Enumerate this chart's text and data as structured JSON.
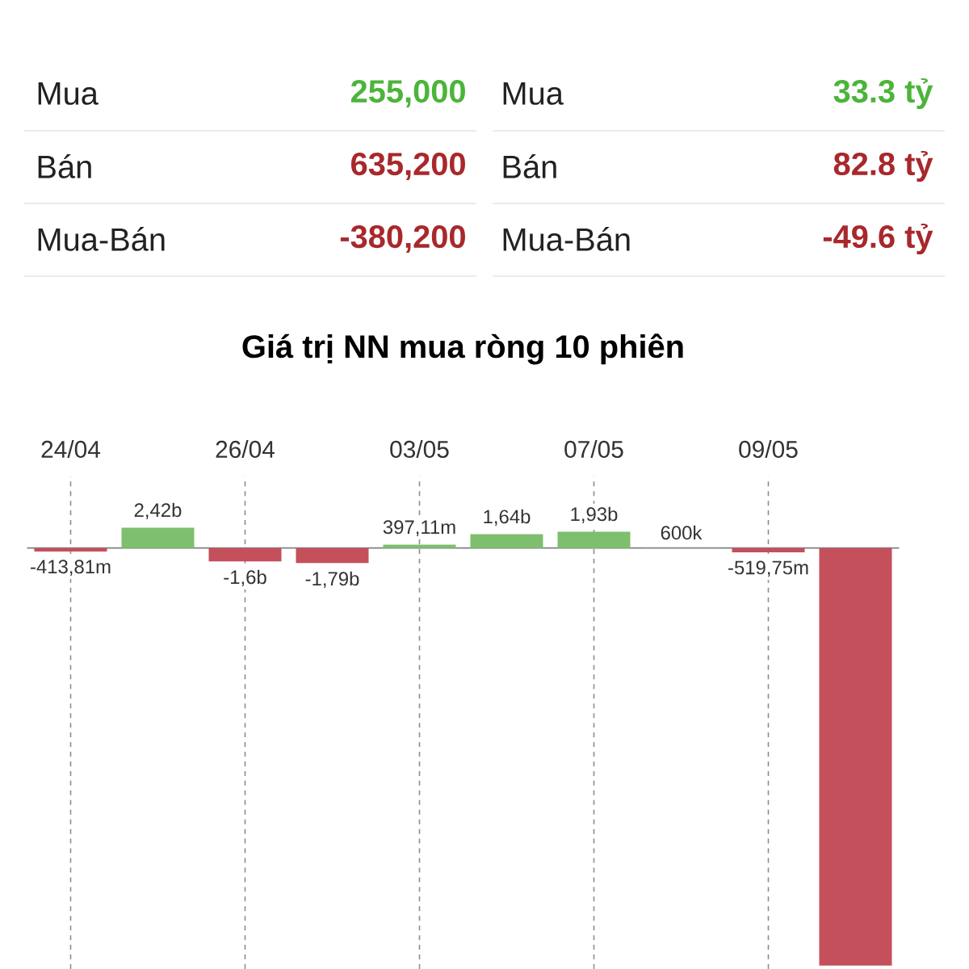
{
  "chart_data": [
    {
      "type": "other",
      "annotations": [
        "Mua",
        "255,000",
        "Mua",
        "33.3 tỷ",
        "Bán",
        "635,200",
        "Bán",
        "82.8 tỷ",
        "Mua-Bán",
        "-380,200",
        "Mua-Bán",
        "-49.6 tỷ"
      ],
      "colors": [
        "#222222",
        "#4cb43a",
        "#222222",
        "#4cb43a",
        "#222222",
        "#a8282c",
        "#222222",
        "#a8282c",
        "#222222",
        "#a8282c",
        "#222222",
        "#a8282c"
      ]
    },
    {
      "type": "bar",
      "title": "Giá trị NN mua ròng 10 phiên",
      "categories": [
        "24/04",
        null,
        "26/04",
        null,
        "03/05",
        null,
        "07/05",
        null,
        "09/05",
        null
      ],
      "values": [
        -413810000,
        2420000000,
        -1600000000,
        -1790000000,
        397110000,
        1640000000,
        1930000000,
        600000,
        -519750000,
        -49600000000
      ],
      "value_labels": [
        "-413,81m",
        "2,42b",
        "-1,6b",
        "-1,79b",
        "397,11m",
        "1,64b",
        "1,93b",
        "600k",
        "-519,75m",
        null
      ],
      "colors": [
        "#c4505c",
        "#7dbf6e",
        "#c4505c",
        "#c4505c",
        "#7dbf6e",
        "#7dbf6e",
        "#7dbf6e",
        "#7dbf6e",
        "#c4505c",
        "#c4505c"
      ],
      "ylim": [
        -50000000000,
        8500000000
      ],
      "grid": "x",
      "tick_labels": "x"
    }
  ]
}
